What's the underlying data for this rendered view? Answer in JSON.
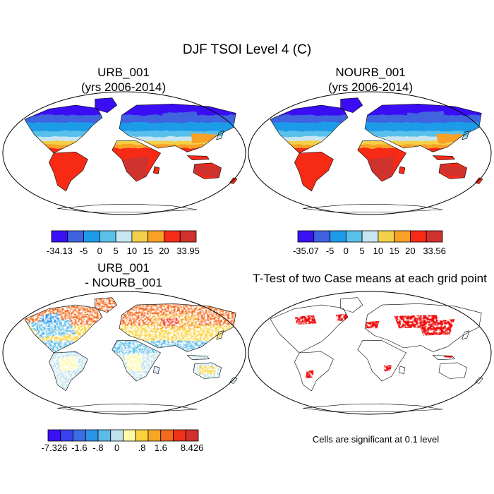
{
  "title": "DJF TSOI Level 4 (C)",
  "panels": [
    {
      "id": "urb",
      "title_lines": [
        "URB_001",
        "(yrs 2006-2014)"
      ],
      "variant": "temp"
    },
    {
      "id": "nourb",
      "title_lines": [
        "NOURB_001",
        "(yrs 2006-2014)"
      ],
      "variant": "temp"
    },
    {
      "id": "diff",
      "title_lines": [
        "URB_001",
        "- NOURB_001"
      ],
      "variant": "diff"
    },
    {
      "id": "ttest",
      "title_lines": [
        "T-Test of two Case means at each grid point"
      ],
      "variant": "sig"
    }
  ],
  "colorbars": [
    {
      "id": "urb",
      "colors": [
        "#3a10f5",
        "#3f63e0",
        "#1d9be9",
        "#59c0ea",
        "#c7e6f2",
        "#f4d04a",
        "#f8a126",
        "#f72a17",
        "#d0312f"
      ],
      "labels": [
        "-34.13",
        "-5",
        "0",
        "5",
        "10",
        "15",
        "20",
        "33.95"
      ]
    },
    {
      "id": "nourb",
      "colors": [
        "#3a10f5",
        "#3f63e0",
        "#1d9be9",
        "#59c0ea",
        "#c7e6f2",
        "#f4d04a",
        "#f8a126",
        "#f72a17",
        "#d0312f"
      ],
      "labels": [
        "-35.07",
        "-5",
        "0",
        "5",
        "10",
        "15",
        "20",
        "33.56"
      ]
    },
    {
      "id": "diff",
      "colors": [
        "#3a10f5",
        "#3a3ff0",
        "#3b6ee4",
        "#2b95e8",
        "#5cbbe8",
        "#bfe2ee",
        "#fff8a8",
        "#fbd23c",
        "#f8a526",
        "#f36a1d",
        "#f0321a",
        "#d0312f"
      ],
      "labels": [
        "-7.326",
        "-1.6",
        "-.8",
        "0",
        ".8",
        "1.6",
        "8.426"
      ]
    }
  ],
  "note": "Cells are significant at 0.1 level",
  "chart_data": [
    {
      "type": "heatmap",
      "title": "URB_001 (yrs 2006-2014)",
      "variable": "TSOI Level 4",
      "season": "DJF",
      "units": "C",
      "range": [
        -34.13,
        33.95
      ],
      "contour_levels": [
        -5,
        0,
        5,
        10,
        15,
        20
      ]
    },
    {
      "type": "heatmap",
      "title": "NOURB_001 (yrs 2006-2014)",
      "variable": "TSOI Level 4",
      "season": "DJF",
      "units": "C",
      "range": [
        -35.07,
        33.56
      ],
      "contour_levels": [
        -5,
        0,
        5,
        10,
        15,
        20
      ]
    },
    {
      "type": "heatmap",
      "title": "URB_001 - NOURB_001",
      "units": "C",
      "range": [
        -7.326,
        8.426
      ],
      "contour_levels": [
        -1.6,
        -0.8,
        0,
        0.8,
        1.6
      ]
    },
    {
      "type": "heatmap",
      "title": "T-Test of two Case means at each grid point",
      "significance_level": 0.1
    }
  ]
}
